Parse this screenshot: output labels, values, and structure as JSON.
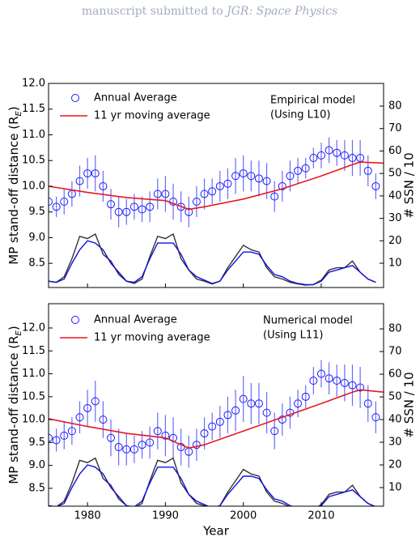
{
  "header": {
    "text": "manuscript submitted to",
    "journal": "JGR: Space Physics"
  },
  "chart_data": [
    {
      "type": "line",
      "xlim": [
        1975,
        2018
      ],
      "ylim": [
        8.03,
        12.0
      ],
      "yticks": [
        8.5,
        {
          "value": 9,
          "label": "9.0"
        },
        9.5,
        {
          "value": 10,
          "label": "10.0"
        },
        10.5,
        {
          "value": 11,
          "label": "11.0"
        },
        11.5,
        {
          "value": 12,
          "label": "12.0"
        }
      ],
      "y2lim": [
        -0.8,
        90.1
      ],
      "y2ticks": [
        10,
        20,
        30,
        40,
        50,
        60,
        70,
        80
      ],
      "ylabel": "MP stand-off distance (RE)",
      "y2label": "# SSN / 10",
      "annotation": [
        "Empirical model",
        "(Using L10)"
      ],
      "legend": "upper left",
      "x": [
        1975,
        1976,
        1977,
        1978,
        1979,
        1980,
        1981,
        1982,
        1983,
        1984,
        1985,
        1986,
        1987,
        1988,
        1989,
        1990,
        1991,
        1992,
        1993,
        1994,
        1995,
        1996,
        1997,
        1998,
        1999,
        2000,
        2001,
        2002,
        2003,
        2004,
        2005,
        2006,
        2007,
        2008,
        2009,
        2010,
        2011,
        2012,
        2013,
        2014,
        2015,
        2016,
        2017
      ],
      "series": [
        {
          "name": "Annual Average",
          "style": "markers",
          "color": "#1a1aff",
          "values": [
            9.7,
            9.6,
            9.7,
            9.85,
            10.1,
            10.25,
            10.25,
            10.0,
            9.65,
            9.5,
            9.5,
            9.6,
            9.55,
            9.6,
            9.85,
            9.85,
            9.7,
            9.6,
            9.5,
            9.7,
            9.85,
            9.9,
            10.0,
            10.05,
            10.2,
            10.25,
            10.2,
            10.15,
            10.1,
            9.8,
            10.0,
            10.2,
            10.3,
            10.35,
            10.55,
            10.6,
            10.7,
            10.65,
            10.6,
            10.55,
            10.55,
            10.3,
            10.0
          ],
          "errors": [
            0.25,
            0.2,
            0.25,
            0.25,
            0.3,
            0.3,
            0.35,
            0.3,
            0.3,
            0.3,
            0.25,
            0.25,
            0.25,
            0.3,
            0.3,
            0.35,
            0.35,
            0.3,
            0.3,
            0.3,
            0.3,
            0.25,
            0.3,
            0.3,
            0.35,
            0.35,
            0.3,
            0.35,
            0.35,
            0.3,
            0.3,
            0.3,
            0.25,
            0.2,
            0.2,
            0.25,
            0.25,
            0.25,
            0.3,
            0.35,
            0.35,
            0.3,
            0.25
          ]
        },
        {
          "name": "11 yr moving average",
          "style": "line",
          "color": "#e8171c",
          "x": [
            1975,
            1980,
            1985,
            1990,
            1993,
            1995,
            2000,
            2005,
            2010,
            2014,
            2015,
            2018
          ],
          "values": [
            10.0,
            9.88,
            9.78,
            9.72,
            9.55,
            9.6,
            9.75,
            9.95,
            10.2,
            10.42,
            10.47,
            10.45
          ]
        },
        {
          "style": "line",
          "axis": "y2",
          "color": "#333333",
          "values": [
            2,
            1.5,
            4,
            12,
            22,
            21,
            23,
            14,
            11,
            5,
            2,
            1,
            3,
            13,
            22,
            21,
            23,
            12,
            7,
            3,
            2,
            0.8,
            2,
            8,
            13,
            18,
            16,
            15,
            8,
            4,
            3,
            1.5,
            0.8,
            0.3,
            0.5,
            2.5,
            7,
            8,
            8,
            11,
            6,
            3,
            1.5
          ]
        },
        {
          "style": "line",
          "axis": "y2",
          "color": "#1010e0",
          "values": [
            2,
            1.5,
            3,
            10,
            16,
            20,
            19,
            16,
            10,
            6,
            2,
            1.5,
            4,
            12,
            19,
            19,
            19,
            14,
            7,
            4,
            2.5,
            1,
            2,
            7,
            11,
            15,
            15,
            14,
            9,
            5,
            4,
            2,
            1,
            0.5,
            0.5,
            2,
            6,
            7,
            8,
            9,
            6,
            3,
            1.5
          ]
        }
      ]
    },
    {
      "type": "line",
      "xlim": [
        1975,
        2018
      ],
      "ylim": [
        8.11,
        12.53
      ],
      "xticks": [
        1980,
        1990,
        2000,
        2010
      ],
      "xlabel": "Year",
      "yticks": [
        8.5,
        {
          "value": 9,
          "label": "9.0"
        },
        9.5,
        {
          "value": 10,
          "label": "10.0"
        },
        10.5,
        {
          "value": 11,
          "label": "11.0"
        },
        11.5,
        {
          "value": 12,
          "label": "12.0"
        }
      ],
      "y2lim": [
        1.8,
        91.1
      ],
      "y2ticks": [
        10,
        20,
        30,
        40,
        50,
        60,
        70,
        80
      ],
      "ylabel": "MP stand-off distance (RE)",
      "y2label": "# SSN / 10",
      "annotation": [
        "Numerical model",
        "(Using L11)"
      ],
      "legend": "upper left",
      "x": [
        1975,
        1976,
        1977,
        1978,
        1979,
        1980,
        1981,
        1982,
        1983,
        1984,
        1985,
        1986,
        1987,
        1988,
        1989,
        1990,
        1991,
        1992,
        1993,
        1994,
        1995,
        1996,
        1997,
        1998,
        1999,
        2000,
        2001,
        2002,
        2003,
        2004,
        2005,
        2006,
        2007,
        2008,
        2009,
        2010,
        2011,
        2012,
        2013,
        2014,
        2015,
        2016,
        2017
      ],
      "series": [
        {
          "name": "Annual Average",
          "style": "markers",
          "color": "#1a1aff",
          "values": [
            9.6,
            9.55,
            9.65,
            9.75,
            10.05,
            10.25,
            10.4,
            10.0,
            9.6,
            9.4,
            9.35,
            9.35,
            9.45,
            9.5,
            9.75,
            9.65,
            9.6,
            9.4,
            9.3,
            9.45,
            9.7,
            9.85,
            9.95,
            10.1,
            10.2,
            10.45,
            10.35,
            10.35,
            10.15,
            9.75,
            10.0,
            10.15,
            10.35,
            10.5,
            10.85,
            11.0,
            10.9,
            10.85,
            10.8,
            10.75,
            10.7,
            10.35,
            10.05
          ],
          "errors": [
            0.3,
            0.25,
            0.3,
            0.3,
            0.35,
            0.4,
            0.45,
            0.4,
            0.4,
            0.4,
            0.35,
            0.3,
            0.3,
            0.35,
            0.4,
            0.45,
            0.45,
            0.4,
            0.35,
            0.35,
            0.35,
            0.3,
            0.35,
            0.4,
            0.45,
            0.5,
            0.45,
            0.45,
            0.45,
            0.4,
            0.35,
            0.35,
            0.3,
            0.25,
            0.3,
            0.3,
            0.35,
            0.35,
            0.4,
            0.45,
            0.45,
            0.4,
            0.35
          ]
        },
        {
          "name": "11 yr moving average",
          "style": "line",
          "color": "#e8171c",
          "x": [
            1975,
            1980,
            1985,
            1990,
            1993,
            1995,
            2000,
            2005,
            2010,
            2014,
            2015,
            2018
          ],
          "values": [
            10.02,
            9.85,
            9.7,
            9.6,
            9.38,
            9.45,
            9.75,
            10.05,
            10.35,
            10.6,
            10.65,
            10.6
          ]
        },
        {
          "style": "line",
          "axis": "y2",
          "color": "#333333",
          "values": [
            2,
            1.5,
            4,
            12,
            22,
            21,
            23,
            14,
            11,
            5,
            2,
            1,
            3,
            13,
            22,
            21,
            23,
            12,
            7,
            3,
            2,
            0.8,
            2,
            8,
            13,
            18,
            16,
            15,
            8,
            4,
            3,
            1.5,
            0.8,
            0.3,
            0.5,
            2.5,
            7,
            8,
            8,
            11,
            6,
            3,
            1.5
          ]
        },
        {
          "style": "line",
          "axis": "y2",
          "color": "#1010e0",
          "values": [
            2,
            1.5,
            3,
            10,
            16,
            20,
            19,
            16,
            10,
            6,
            2,
            1.5,
            4,
            12,
            19,
            19,
            19,
            14,
            7,
            4,
            2.5,
            1,
            2,
            7,
            11,
            15,
            15,
            14,
            9,
            5,
            4,
            2,
            1,
            0.5,
            0.5,
            2,
            6,
            7,
            8,
            9,
            6,
            3,
            1.5
          ]
        }
      ]
    }
  ]
}
